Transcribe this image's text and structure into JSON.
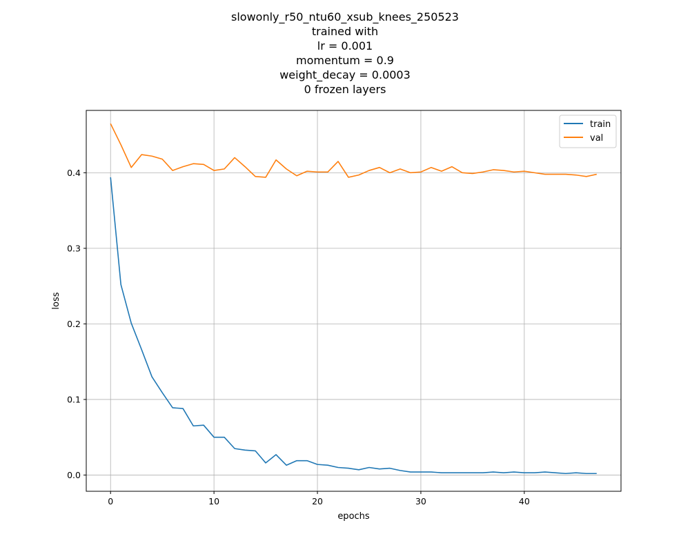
{
  "chart_data": {
    "type": "line",
    "title_lines": [
      "slowonly_r50_ntu60_xsub_knees_250523",
      "trained with",
      "lr = 0.001",
      "momentum = 0.9",
      "weight_decay = 0.0003",
      "0 frozen layers"
    ],
    "xlabel": "epochs",
    "ylabel": "loss",
    "xlim": [
      -2.35,
      49.35
    ],
    "ylim": [
      -0.0215,
      0.4825
    ],
    "xticks": [
      0,
      10,
      20,
      30,
      40
    ],
    "yticks": [
      0.0,
      0.1,
      0.2,
      0.3,
      0.4
    ],
    "ytick_labels": [
      "0.0",
      "0.1",
      "0.2",
      "0.3",
      "0.4"
    ],
    "grid": true,
    "legend_position": "top-right",
    "x": [
      0,
      1,
      2,
      3,
      4,
      5,
      6,
      7,
      8,
      9,
      10,
      11,
      12,
      13,
      14,
      15,
      16,
      17,
      18,
      19,
      20,
      21,
      22,
      23,
      24,
      25,
      26,
      27,
      28,
      29,
      30,
      31,
      32,
      33,
      34,
      35,
      36,
      37,
      38,
      39,
      40,
      41,
      42,
      43,
      44,
      45,
      46,
      47
    ],
    "series": [
      {
        "name": "train",
        "color": "#1f77b4",
        "values": [
          0.394,
          0.252,
          0.201,
          0.166,
          0.13,
          0.109,
          0.089,
          0.088,
          0.065,
          0.066,
          0.05,
          0.05,
          0.035,
          0.033,
          0.032,
          0.016,
          0.027,
          0.013,
          0.019,
          0.019,
          0.014,
          0.013,
          0.01,
          0.009,
          0.007,
          0.01,
          0.008,
          0.009,
          0.006,
          0.004,
          0.004,
          0.004,
          0.003,
          0.003,
          0.003,
          0.003,
          0.003,
          0.004,
          0.003,
          0.004,
          0.003,
          0.003,
          0.004,
          0.003,
          0.002,
          0.003,
          0.002,
          0.002
        ]
      },
      {
        "name": "val",
        "color": "#ff7f0e",
        "values": [
          0.465,
          0.437,
          0.407,
          0.424,
          0.422,
          0.418,
          0.403,
          0.408,
          0.412,
          0.411,
          0.403,
          0.405,
          0.42,
          0.408,
          0.395,
          0.394,
          0.417,
          0.405,
          0.396,
          0.402,
          0.401,
          0.401,
          0.415,
          0.394,
          0.397,
          0.403,
          0.407,
          0.4,
          0.405,
          0.4,
          0.401,
          0.407,
          0.402,
          0.408,
          0.4,
          0.399,
          0.401,
          0.404,
          0.403,
          0.401,
          0.402,
          0.4,
          0.398,
          0.398,
          0.398,
          0.397,
          0.395,
          0.398
        ]
      }
    ]
  }
}
